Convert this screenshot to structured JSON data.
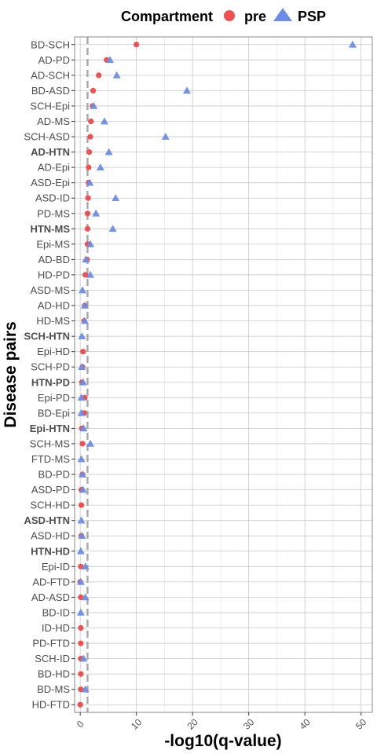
{
  "chart_data": {
    "type": "scatter",
    "xlabel": "-log10(q-value)",
    "ylabel": "Disease pairs",
    "xlim": [
      -1,
      52
    ],
    "x_ticks": [
      0,
      10,
      20,
      30,
      40,
      50
    ],
    "reference_line_x": 1.3,
    "grid": true,
    "legend": {
      "title": "Compartment",
      "position": "top",
      "entries": [
        {
          "name": "pre",
          "shape": "circle",
          "color": "#F05050"
        },
        {
          "name": "PSP",
          "shape": "triangle",
          "color": "#6B8DE8"
        }
      ]
    },
    "categories": [
      "BD-SCH",
      "AD-PD",
      "AD-SCH",
      "BD-ASD",
      "SCH-Epi",
      "AD-MS",
      "SCH-ASD",
      "AD-HTN",
      "AD-Epi",
      "ASD-Epi",
      "ASD-ID",
      "PD-MS",
      "HTN-MS",
      "Epi-MS",
      "AD-BD",
      "HD-PD",
      "ASD-MS",
      "AD-HD",
      "HD-MS",
      "SCH-HTN",
      "Epi-HD",
      "SCH-PD",
      "HTN-PD",
      "Epi-PD",
      "BD-Epi",
      "Epi-HTN",
      "SCH-MS",
      "FTD-MS",
      "BD-PD",
      "ASD-PD",
      "SCH-HD",
      "ASD-HTN",
      "ASD-HD",
      "HTN-HD",
      "Epi-ID",
      "AD-FTD",
      "AD-ASD",
      "BD-ID",
      "ID-HD",
      "PD-FTD",
      "SCH-ID",
      "BD-HD",
      "BD-MS",
      "HD-FTD"
    ],
    "bold_categories": [
      "AD-HTN",
      "HTN-MS",
      "SCH-HTN",
      "HTN-PD",
      "Epi-HTN",
      "ASD-HTN",
      "HTN-HD"
    ],
    "series": [
      {
        "name": "pre",
        "values": [
          10.0,
          4.7,
          3.3,
          2.3,
          2.2,
          1.9,
          1.8,
          1.6,
          1.5,
          1.5,
          1.4,
          1.3,
          1.3,
          1.3,
          1.2,
          0.9,
          null,
          0.8,
          0.7,
          null,
          0.5,
          0.4,
          0.3,
          0.8,
          0.7,
          0.3,
          0.4,
          null,
          0.4,
          0.2,
          0.2,
          null,
          0.2,
          null,
          0.1,
          0.0,
          0.1,
          null,
          0.1,
          0.1,
          0.1,
          0.1,
          0.1,
          0.0
        ]
      },
      {
        "name": "PSP",
        "values": [
          48.5,
          5.3,
          6.5,
          19.0,
          2.4,
          4.3,
          15.2,
          5.1,
          3.6,
          1.7,
          6.3,
          2.8,
          5.8,
          1.8,
          1.0,
          1.8,
          0.4,
          0.8,
          0.8,
          0.3,
          null,
          0.3,
          0.5,
          0.2,
          0.2,
          0.6,
          1.8,
          0.2,
          0.4,
          0.5,
          null,
          0.2,
          0.3,
          0.1,
          0.9,
          0.1,
          0.9,
          0.1,
          null,
          null,
          0.6,
          null,
          0.9,
          null
        ]
      }
    ]
  }
}
